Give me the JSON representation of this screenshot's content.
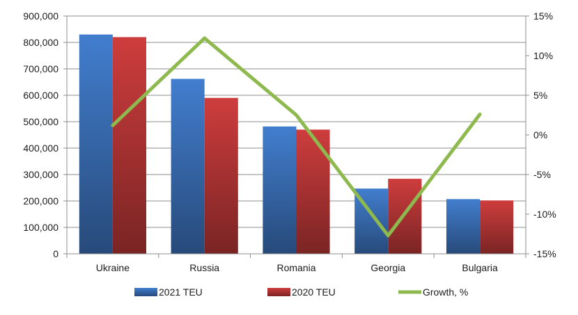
{
  "chart_data": {
    "type": "bar",
    "categories": [
      "Ukraine",
      "Russia",
      "Romania",
      "Georgia",
      "Bulgaria"
    ],
    "series": [
      {
        "name": "2021 TEU",
        "kind": "bar",
        "axis": "left",
        "color": "#3f78c4",
        "values": [
          830000,
          662000,
          482000,
          247000,
          207000
        ]
      },
      {
        "name": "2020 TEU",
        "kind": "bar",
        "axis": "left",
        "color": "#c43a3a",
        "values": [
          820000,
          590000,
          470000,
          284000,
          202000
        ]
      },
      {
        "name": "Growth, %",
        "kind": "line",
        "axis": "right",
        "color": "#8db94f",
        "values": [
          1.2,
          12.2,
          2.5,
          -12.7,
          2.6
        ]
      }
    ],
    "left_axis": {
      "ylim": [
        0,
        900000
      ],
      "step": 100000,
      "tick_labels": [
        "0",
        "100,000",
        "200,000",
        "300,000",
        "400,000",
        "500,000",
        "600,000",
        "700,000",
        "800,000",
        "900,000"
      ]
    },
    "right_axis": {
      "ylim": [
        -15,
        15
      ],
      "step": 5,
      "tick_labels": [
        "-15%",
        "-10%",
        "-5%",
        "0%",
        "5%",
        "10%",
        "15%"
      ]
    },
    "grid": true,
    "legend_position": "bottom",
    "title": "",
    "xlabel": "",
    "ylabel": ""
  }
}
